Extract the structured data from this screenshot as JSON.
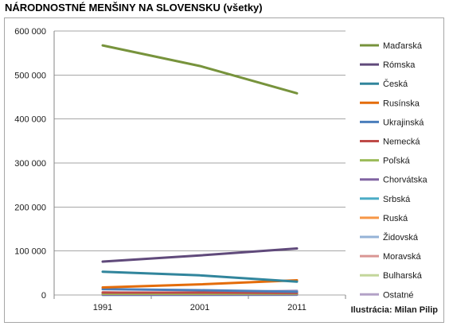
{
  "chart_data": {
    "type": "line",
    "title": "NÁRODNOSTNÉ MENŠINY NA SLOVENSKU (všetky)",
    "x": [
      "1991",
      "2001",
      "2011"
    ],
    "ylim": [
      0,
      600000
    ],
    "yticks": [
      "0",
      "100 000",
      "200 000",
      "300 000",
      "400 000",
      "500 000",
      "600 000"
    ],
    "ytick_values": [
      0,
      100000,
      200000,
      300000,
      400000,
      500000,
      600000
    ],
    "grid": true,
    "legend": "right",
    "series": [
      {
        "name": "Maďarská",
        "color": "#77933c",
        "values": [
          567296,
          520528,
          458467
        ]
      },
      {
        "name": "Rómska",
        "color": "#604a7b",
        "values": [
          75802,
          89920,
          105738
        ]
      },
      {
        "name": "Česká",
        "color": "#31859c",
        "values": [
          52884,
          44620,
          30367
        ]
      },
      {
        "name": "Rusínska",
        "color": "#e46c0a",
        "values": [
          17197,
          24201,
          33482
        ]
      },
      {
        "name": "Ukrajinská",
        "color": "#4a7ebb",
        "values": [
          13281,
          10814,
          7430
        ]
      },
      {
        "name": "Nemecká",
        "color": "#be4b48",
        "values": [
          5414,
          5405,
          4690
        ]
      },
      {
        "name": "Poľská",
        "color": "#9bbb59",
        "values": [
          2659,
          2602,
          3084
        ]
      },
      {
        "name": "Chorvátska",
        "color": "#8064a2",
        "values": [
          1000,
          890,
          1022
        ]
      },
      {
        "name": "Srbská",
        "color": "#4bacc6",
        "values": [
          500,
          434,
          698
        ]
      },
      {
        "name": "Ruská",
        "color": "#f79646",
        "values": [
          1389,
          1590,
          1997
        ]
      },
      {
        "name": "Židovská",
        "color": "#95b3d7",
        "values": [
          134,
          218,
          631
        ]
      },
      {
        "name": "Moravská",
        "color": "#d99694",
        "values": [
          6037,
          2348,
          3286
        ]
      },
      {
        "name": "Bulharská",
        "color": "#c3d69b",
        "values": [
          1400,
          1179,
          1051
        ]
      },
      {
        "name": "Ostatné",
        "color": "#b3a2c7",
        "values": [
          2732,
          5350,
          9825
        ]
      }
    ]
  },
  "credit": "Ilustrácia: Milan Pilip"
}
